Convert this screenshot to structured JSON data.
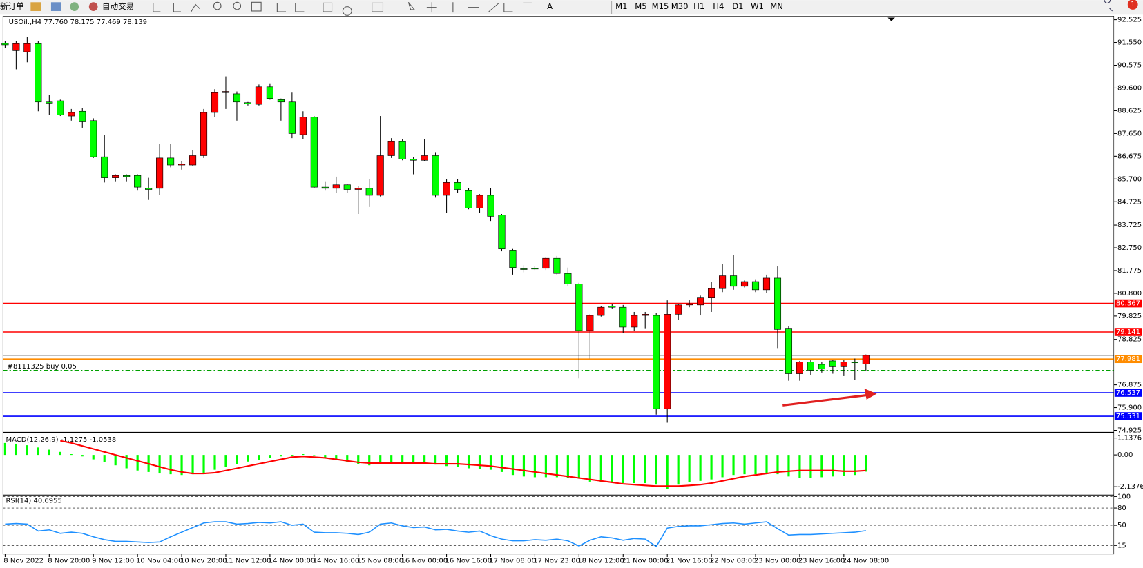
{
  "toolbar": {
    "new_order": "新订单",
    "auto_trading": "自动交易",
    "timeframes": [
      "M1",
      "M5",
      "M15",
      "M30",
      "H1",
      "H4",
      "D1",
      "W1",
      "MN"
    ],
    "notifications": "1"
  },
  "chart_data": [
    {
      "type": "candlestick",
      "title": "USOil.,H4  77.760 78.175 77.469 78.139",
      "categories": [
        "8 Nov 2022",
        null,
        null,
        null,
        "8 Nov 20:00",
        null,
        null,
        null,
        "9 Nov 12:00",
        null,
        null,
        null,
        "10 Nov 04:00",
        null,
        null,
        null,
        "10 Nov 20:00",
        null,
        null,
        null,
        "11 Nov 12:00",
        null,
        null,
        null,
        "14 Nov 00:00",
        null,
        null,
        null,
        "14 Nov 16:00",
        null,
        null,
        null,
        "15 Nov 08:00",
        null,
        null,
        null,
        "16 Nov 00:00",
        null,
        null,
        null,
        "16 Nov 16:00",
        null,
        null,
        null,
        "17 Nov 08:00",
        null,
        null,
        null,
        "17 Nov 23:00",
        null,
        null,
        null,
        "18 Nov 12:00",
        null,
        null,
        null,
        "21 Nov 00:00",
        null,
        null,
        null,
        "21 Nov 16:00",
        null,
        null,
        null,
        "22 Nov 08:00",
        null,
        null,
        null,
        "23 Nov 00:00",
        null,
        null,
        null,
        "23 Nov 16:00",
        null,
        null,
        null,
        "24 Nov 08:00",
        null,
        null
      ],
      "open": [
        91.51,
        91.2,
        91.15,
        91.5,
        89.0,
        89.05,
        88.4,
        88.6,
        88.2,
        86.65,
        85.75,
        85.85,
        85.85,
        85.3,
        85.3,
        86.6,
        86.3,
        86.3,
        86.7,
        88.55,
        89.4,
        89.35,
        88.97,
        88.9,
        89.65,
        89.1,
        89.0,
        87.6,
        88.35,
        85.35,
        85.3,
        85.45,
        85.25,
        85.3,
        85.0,
        86.7,
        87.3,
        86.55,
        86.5,
        86.7,
        85.0,
        85.55,
        85.2,
        84.45,
        85.0,
        84.15,
        82.65,
        81.85,
        81.87,
        81.87,
        82.3,
        81.65,
        81.2,
        79.2,
        79.85,
        80.25,
        80.2,
        79.35,
        79.85,
        79.85,
        75.85,
        79.9,
        80.3,
        80.3,
        80.6,
        81.0,
        81.55,
        81.1,
        81.3,
        80.95,
        81.45,
        79.3,
        77.35,
        77.85,
        77.75,
        77.9,
        77.65,
        77.85,
        77.76
      ],
      "high": [
        91.6,
        91.6,
        91.8,
        91.6,
        89.3,
        89.1,
        88.7,
        88.75,
        88.3,
        87.6,
        85.9,
        85.9,
        85.9,
        85.75,
        87.2,
        87.2,
        86.45,
        86.95,
        88.7,
        89.55,
        90.1,
        89.45,
        89.0,
        89.75,
        89.8,
        89.15,
        89.4,
        88.6,
        88.4,
        85.6,
        85.8,
        85.5,
        85.4,
        85.7,
        88.4,
        87.45,
        87.4,
        86.65,
        87.4,
        86.85,
        85.7,
        85.7,
        85.3,
        85.05,
        85.3,
        84.2,
        82.7,
        82.0,
        81.95,
        82.35,
        82.4,
        81.9,
        81.25,
        79.9,
        80.25,
        80.35,
        80.3,
        80.0,
        80.0,
        79.95,
        80.5,
        80.35,
        80.5,
        80.7,
        81.3,
        82.05,
        82.45,
        81.35,
        81.4,
        81.6,
        81.95,
        79.4,
        77.9,
        77.95,
        77.85,
        77.95,
        77.95,
        78.0,
        78.175
      ],
      "low": [
        91.3,
        90.4,
        90.7,
        88.6,
        88.45,
        88.4,
        88.2,
        87.9,
        86.6,
        85.55,
        85.6,
        85.6,
        85.2,
        84.8,
        85.0,
        86.2,
        86.1,
        86.25,
        86.6,
        88.35,
        88.7,
        88.2,
        88.85,
        88.85,
        89.1,
        88.2,
        87.45,
        87.4,
        85.3,
        85.2,
        85.1,
        85.1,
        84.2,
        84.5,
        84.95,
        86.6,
        86.5,
        85.9,
        86.45,
        84.9,
        84.25,
        85.1,
        84.4,
        84.25,
        83.9,
        82.6,
        81.6,
        81.7,
        81.8,
        81.8,
        81.6,
        81.1,
        77.15,
        78.0,
        79.8,
        80.15,
        79.1,
        79.2,
        79.3,
        75.6,
        75.25,
        79.65,
        80.2,
        79.85,
        80.0,
        80.85,
        80.95,
        81.05,
        80.85,
        80.8,
        78.45,
        77.05,
        77.05,
        77.3,
        77.4,
        77.35,
        77.25,
        77.1,
        77.469
      ],
      "close": [
        91.45,
        91.5,
        91.5,
        89.0,
        88.95,
        88.45,
        88.55,
        88.15,
        86.65,
        85.75,
        85.85,
        85.8,
        85.35,
        85.25,
        86.6,
        86.3,
        86.35,
        86.7,
        88.55,
        89.4,
        89.45,
        89.0,
        88.92,
        89.65,
        89.15,
        89.0,
        87.65,
        88.35,
        85.35,
        85.3,
        85.45,
        85.25,
        85.3,
        85.0,
        86.7,
        87.3,
        86.55,
        86.5,
        86.7,
        85.0,
        85.55,
        85.25,
        84.45,
        85.0,
        84.1,
        82.7,
        81.9,
        81.85,
        81.85,
        82.3,
        81.65,
        81.2,
        79.2,
        79.85,
        80.2,
        80.2,
        79.35,
        79.85,
        79.9,
        75.85,
        79.9,
        80.3,
        80.35,
        80.6,
        81.0,
        81.55,
        81.1,
        81.3,
        80.95,
        81.45,
        79.25,
        77.35,
        77.85,
        77.5,
        77.55,
        77.65,
        77.85,
        77.85,
        78.139
      ],
      "up_color": "#ff0000",
      "down_color": "#00ff00",
      "ylim": [
        74.87,
        92.68
      ],
      "yticks": [
        92.525,
        {
          "value": 91.55,
          "label": "91.550"
        },
        90.575,
        {
          "value": 89.6,
          "label": "89.600"
        },
        88.625,
        {
          "value": 87.65,
          "label": "87.650"
        },
        86.675,
        {
          "value": 85.7,
          "label": "85.700"
        },
        84.725,
        83.725,
        {
          "value": 82.75,
          "label": "82.750"
        },
        81.775,
        {
          "value": 80.8,
          "label": "80.800"
        },
        79.825,
        78.825,
        76.875,
        {
          "value": 75.9,
          "label": "75.900"
        },
        74.925
      ],
      "lines": [
        {
          "value": 80.367,
          "color": "#ff0000"
        },
        {
          "value": 79.141,
          "color": "#ff0000"
        },
        {
          "value": 77.981,
          "color": "#ff8c00"
        },
        {
          "value": 76.537,
          "color": "#0000ff"
        },
        {
          "value": 75.531,
          "color": "#0000ff"
        }
      ],
      "bid": {
        "value": 78.139,
        "color": "#000000"
      },
      "order": {
        "label": "#8111325 buy 0.05",
        "value": 77.5,
        "color": "#00a000"
      }
    },
    {
      "type": "macd",
      "title": "MACD(12,26,9) -1.1275 -1.0538",
      "histogram": {
        "color": "#00ff00",
        "values": [
          0.8,
          0.75,
          0.65,
          0.5,
          0.35,
          0.2,
          0.05,
          -0.1,
          -0.3,
          -0.5,
          -0.7,
          -0.9,
          -1.05,
          -1.15,
          -1.25,
          -1.3,
          -1.35,
          -1.3,
          -1.2,
          -1.0,
          -0.8,
          -0.6,
          -0.45,
          -0.35,
          -0.2,
          -0.1,
          -0.05,
          0.05,
          0.0,
          -0.2,
          -0.35,
          -0.5,
          -0.6,
          -0.7,
          -0.6,
          -0.5,
          -0.5,
          -0.55,
          -0.55,
          -0.65,
          -0.75,
          -0.8,
          -0.9,
          -0.95,
          -1.0,
          -1.15,
          -1.35,
          -1.45,
          -1.5,
          -1.5,
          -1.5,
          -1.55,
          -1.6,
          -1.8,
          -1.85,
          -1.85,
          -1.9,
          -1.9,
          -1.9,
          -2.0,
          -2.3,
          -2.0,
          -1.85,
          -1.75,
          -1.65,
          -1.5,
          -1.35,
          -1.3,
          -1.3,
          -1.25,
          -1.3,
          -1.45,
          -1.55,
          -1.55,
          -1.5,
          -1.45,
          -1.4,
          -1.35,
          -1.1275
        ]
      },
      "signal": {
        "color": "#ff0000",
        "values": [
          null,
          null,
          null,
          null,
          null,
          0.95,
          0.8,
          0.6,
          0.4,
          0.2,
          0.0,
          -0.2,
          -0.4,
          -0.6,
          -0.8,
          -1.0,
          -1.15,
          -1.25,
          -1.25,
          -1.2,
          -1.05,
          -0.9,
          -0.75,
          -0.6,
          -0.45,
          -0.3,
          -0.15,
          -0.1,
          -0.15,
          -0.2,
          -0.3,
          -0.4,
          -0.5,
          -0.55,
          -0.55,
          -0.55,
          -0.55,
          -0.55,
          -0.55,
          -0.6,
          -0.6,
          -0.6,
          -0.65,
          -0.7,
          -0.75,
          -0.85,
          -0.95,
          -1.05,
          -1.15,
          -1.25,
          -1.35,
          -1.45,
          -1.55,
          -1.65,
          -1.75,
          -1.85,
          -1.95,
          -2.0,
          -2.05,
          -2.1,
          -2.1,
          -2.1,
          -2.05,
          -2.0,
          -1.9,
          -1.75,
          -1.6,
          -1.45,
          -1.35,
          -1.25,
          -1.15,
          -1.1,
          -1.05,
          -1.05,
          -1.05,
          -1.05,
          -1.1,
          -1.1,
          -1.0538
        ]
      },
      "ylim": [
        -2.65,
        1.37
      ],
      "yticks": [
        1.1376,
        {
          "value": 0,
          "label": "0.00"
        },
        -2.1376
      ]
    },
    {
      "type": "line",
      "title": "RSI(14) 40.6955",
      "color": "#1e90ff",
      "values": [
        52,
        53,
        52,
        40,
        42,
        36,
        38,
        36,
        30,
        25,
        22,
        22,
        21,
        20,
        21,
        30,
        38,
        46,
        54,
        56,
        56,
        52,
        53,
        55,
        54,
        56,
        50,
        52,
        38,
        37,
        37,
        36,
        34,
        38,
        52,
        54,
        49,
        46,
        47,
        42,
        43,
        40,
        38,
        40,
        32,
        26,
        23,
        23,
        25,
        24,
        26,
        23,
        14,
        24,
        30,
        28,
        24,
        27,
        26,
        13,
        45,
        48,
        49,
        49,
        51,
        53,
        54,
        52,
        54,
        56,
        44,
        33,
        34,
        34,
        35,
        36,
        37,
        38,
        40.6955
      ],
      "ylim": [
        0,
        100
      ],
      "yticks": [
        100,
        80,
        50,
        15
      ]
    }
  ]
}
